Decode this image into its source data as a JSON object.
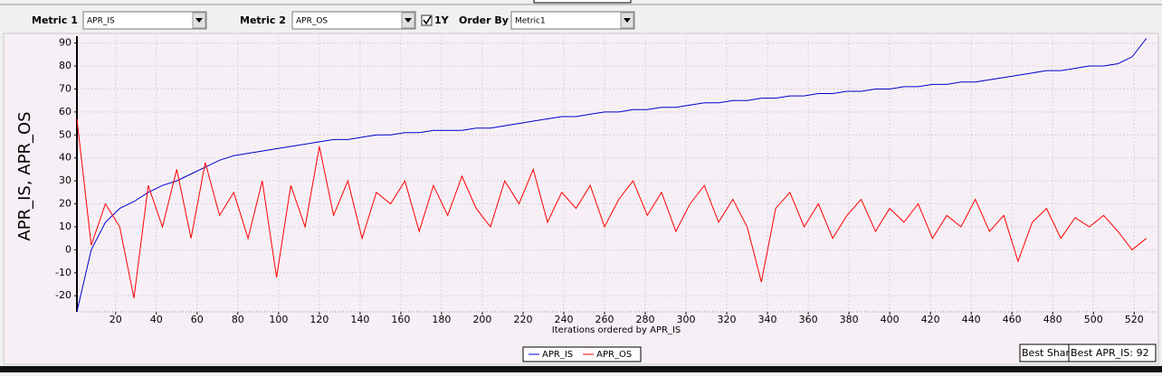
{
  "toolbar": {
    "metric1_label": "Metric 1",
    "metric1_value": "APR_IS",
    "metric2_label": "Metric 2",
    "metric2_value": "APR_OS",
    "checkbox_label": "1Y",
    "checkbox_checked": true,
    "order_label": "Order By",
    "order_value": "Metric1"
  },
  "chart_data": {
    "type": "line",
    "x_label": "Iterations ordered by APR_IS",
    "y_label": "APR_IS, APR_OS",
    "x": [
      1,
      8,
      15,
      22,
      29,
      36,
      43,
      50,
      57,
      64,
      71,
      78,
      85,
      92,
      99,
      106,
      113,
      120,
      127,
      134,
      141,
      148,
      155,
      162,
      169,
      176,
      183,
      190,
      197,
      204,
      211,
      218,
      225,
      232,
      239,
      246,
      253,
      260,
      267,
      274,
      281,
      288,
      295,
      302,
      309,
      316,
      323,
      330,
      337,
      344,
      351,
      358,
      365,
      372,
      379,
      386,
      393,
      400,
      407,
      414,
      421,
      428,
      435,
      442,
      449,
      456,
      463,
      470,
      477,
      484,
      491,
      498,
      505,
      512,
      519,
      526
    ],
    "series": [
      {
        "name": "APR_IS",
        "color": "#0000cc",
        "values": [
          -27,
          0,
          12,
          18,
          21,
          25,
          28,
          30,
          33,
          36,
          39,
          41,
          42,
          43,
          44,
          45,
          46,
          47,
          48,
          48,
          49,
          50,
          50,
          51,
          51,
          52,
          52,
          52,
          53,
          53,
          54,
          55,
          56,
          57,
          58,
          58,
          59,
          60,
          60,
          61,
          61,
          62,
          62,
          63,
          64,
          64,
          65,
          65,
          66,
          66,
          67,
          67,
          68,
          68,
          69,
          69,
          70,
          70,
          71,
          71,
          72,
          72,
          73,
          73,
          74,
          75,
          76,
          77,
          78,
          78,
          79,
          80,
          80,
          81,
          84,
          92
        ]
      },
      {
        "name": "APR_OS",
        "color": "#ff0000",
        "values": [
          57,
          2,
          20,
          10,
          -21,
          28,
          10,
          35,
          5,
          38,
          15,
          25,
          5,
          30,
          -12,
          28,
          10,
          45,
          15,
          30,
          5,
          25,
          20,
          30,
          8,
          28,
          15,
          32,
          18,
          10,
          30,
          20,
          35,
          12,
          25,
          18,
          28,
          10,
          22,
          30,
          15,
          25,
          8,
          20,
          28,
          12,
          22,
          10,
          -14,
          18,
          25,
          10,
          20,
          5,
          15,
          22,
          8,
          18,
          12,
          20,
          5,
          15,
          10,
          22,
          8,
          15,
          -5,
          12,
          18,
          5,
          14,
          10,
          15,
          8,
          0,
          5
        ]
      }
    ],
    "xlim": [
      1,
      531
    ],
    "ylim": [
      -27,
      93
    ],
    "xticks": [
      20,
      40,
      60,
      80,
      100,
      120,
      140,
      160,
      180,
      200,
      220,
      240,
      260,
      280,
      300,
      320,
      340,
      360,
      380,
      400,
      420,
      440,
      460,
      480,
      500,
      520
    ],
    "yticks": [
      -20,
      -10,
      0,
      10,
      20,
      30,
      40,
      50,
      60,
      70,
      80,
      90
    ],
    "grid": true,
    "legend": "bottom"
  },
  "status": {
    "best_sharpe": "Best Shar",
    "best_apr": "Best APR_IS: 92"
  }
}
